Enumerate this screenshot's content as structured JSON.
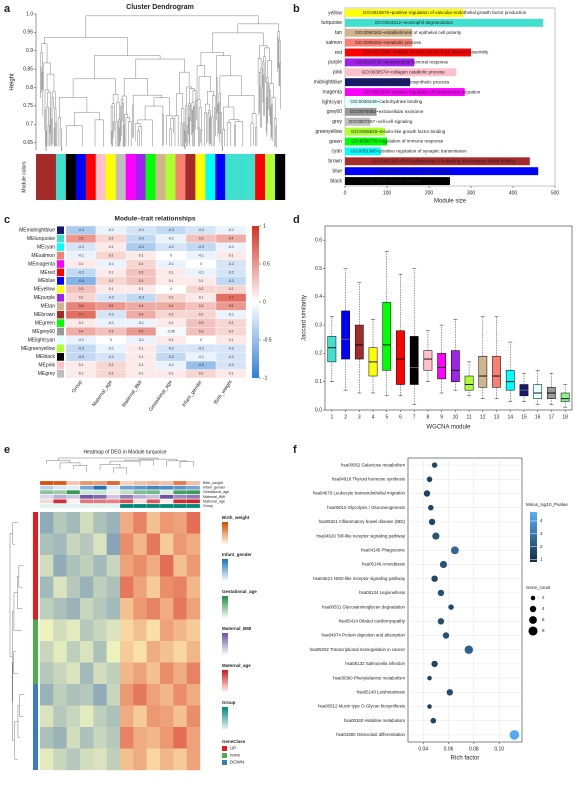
{
  "chart_data": [
    {
      "type": "dendrogram",
      "panel": "a",
      "title": "Cluster Dendrogram",
      "ylabel": "Height",
      "strip_label": "Module colors",
      "ylim": [
        0.63,
        1.0
      ],
      "yticks": [
        0.65,
        0.7,
        0.75,
        0.8,
        0.85,
        0.9,
        0.95,
        {
          "value": 1,
          "label": "1.0"
        }
      ],
      "strip_colors": [
        "#a52a2a",
        "#a52a2a",
        "#40e0d0",
        "#000000",
        "#0000ff",
        "#ff0000",
        "#ffc0cb",
        "#ffff00",
        "#bebebe",
        "#ff00ff",
        "#a020f0",
        "#00ff00",
        "#d2b48c",
        "#adff2f",
        "#fa8072",
        "#a52a2a",
        "#ffff00",
        "#00ffff",
        "#0000ff",
        "#40e0d0",
        "#40e0d0",
        "#40e0d0",
        "#ff0000",
        "#adff2f",
        "#000000"
      ]
    },
    {
      "type": "hbar",
      "panel": "b",
      "xlabel": "Module size",
      "categories": [
        "yellow",
        "turquoise",
        "tan",
        "salmon",
        "red",
        "purple",
        "pink",
        "midnightblue",
        "magenta",
        "lightcyan",
        "grey60",
        "grey",
        "greenyellow",
        "green",
        "cyan",
        "brown",
        "blue",
        "black"
      ],
      "values": [
        282,
        472,
        160,
        160,
        300,
        165,
        265,
        155,
        285,
        85,
        75,
        60,
        95,
        100,
        85,
        440,
        460,
        250
      ],
      "colors": [
        "#ffff00",
        "#40e0d0",
        "#d2b48c",
        "#fa8072",
        "#ff0000",
        "#a020f0",
        "#ffc0cb",
        "#191970",
        "#ff00ff",
        "#e0ffff",
        "#999999",
        "#bebebe",
        "#adff2f",
        "#00ff00",
        "#00ffff",
        "#a52a2a",
        "#0000ff",
        "#000000"
      ],
      "go_terms": [
        "GO:0010575~positive regulation of vascular endothelial growth factor production",
        "GO:0043312~neutrophil degranulation",
        "GO:0090162~establishment of epithelial cell polarity",
        "GO:0008152~metabolic process",
        "GO:0071688~striated muscle myosin thick filament assembly",
        "GO:0019730~antimicrobial humoral response",
        "GO:0030574~collagen catabolic process",
        "GO:0006750~glutathione biosynthetic process",
        "GO:0051549~positive regulation of keratinocyte migration",
        "GO:0030246~carbohydrate binding",
        "GO:0070062~extracellular exosome",
        "GO:0007267~cell-cell signaling",
        "GO:0005520~insulin-like growth factor binding",
        "GO:0050776~regulation of immune response",
        "GO:0051968~positive regulation of synaptic transmission",
        "GO:0001102~RNA polymerase II activating transcription factor binding",
        "GO:0050786~RAGE receptor binding",
        "GO:0003823~antigen binding"
      ],
      "xlim": [
        0,
        500
      ],
      "xticks": [
        0,
        100,
        200,
        300,
        400,
        500
      ]
    },
    {
      "type": "heatmap",
      "panel": "c",
      "title": "Module–trait relationships",
      "rows": [
        "MEmidnightblue",
        "MEturquoise",
        "MEcyan",
        "MEsalmon",
        "MEmagenta",
        "MEred",
        "MEblue",
        "MEyellow",
        "MEpurple",
        "MEtan",
        "MEbrown",
        "MEgreen",
        "MEgrey60",
        "MElightcyan",
        "MEgreenyellow",
        "MEblack",
        "MEpink",
        "MEgrey"
      ],
      "row_colors": [
        "#191970",
        "#40e0d0",
        "#00ffff",
        "#fa8072",
        "#ff00ff",
        "#ff0000",
        "#0000ff",
        "#ffff00",
        "#a020f0",
        "#d2b48c",
        "#a52a2a",
        "#00ff00",
        "#999999",
        "#e0ffff",
        "#adff2f",
        "#000000",
        "#ffc0cb",
        "#bebebe"
      ],
      "columns": [
        "Group",
        "Maternal_age",
        "Maternal_BMI",
        "Gestational_age",
        "Infant_gender",
        "Birth_weight"
      ],
      "values": [
        [
          -0.4,
          -0.1,
          -0.2,
          -0.3,
          -0.2,
          -0.1
        ],
        [
          0.5,
          0.2,
          -0.3,
          -0.1,
          0.3,
          0.4
        ],
        [
          -0.2,
          0.1,
          -0.4,
          -0.2,
          -0.3,
          -0.1
        ],
        [
          -0.1,
          0.2,
          0.1,
          0.0,
          -0.1,
          0.1
        ],
        [
          0.1,
          -0.1,
          0.2,
          -0.1,
          0.0,
          -0.2
        ],
        [
          -0.3,
          0.1,
          0.3,
          0.1,
          -0.1,
          -0.2
        ],
        [
          -0.6,
          0.2,
          0.3,
          0.1,
          0.1,
          -0.3
        ],
        [
          0.3,
          0.1,
          0.1,
          0.0,
          0.2,
          0.2
        ],
        [
          0.2,
          -0.2,
          -0.3,
          0.2,
          0.1,
          0.7
        ],
        [
          0.6,
          0.5,
          0.4,
          0.4,
          0.3,
          0.5
        ],
        [
          0.7,
          -0.2,
          0.4,
          0.2,
          0.2,
          -0.1
        ],
        [
          0.1,
          -0.1,
          -0.1,
          0.1,
          0.3,
          0.2
        ],
        [
          0.4,
          0.3,
          0.5,
          -0.05,
          0.3,
          0.2
        ],
        [
          -0.1,
          0.0,
          -0.1,
          0.1,
          0.0,
          0.1
        ],
        [
          -0.3,
          -0.1,
          0.1,
          -0.2,
          -0.2,
          -0.2
        ],
        [
          -0.3,
          -0.2,
          0.1,
          -0.3,
          -0.1,
          -0.2
        ],
        [
          0.1,
          0.2,
          0.1,
          -0.1,
          -0.5,
          -0.2
        ],
        [
          0.1,
          0.2,
          0.1,
          0.1,
          0.2,
          0.1
        ]
      ],
      "zlim": [
        -1,
        1
      ],
      "zticks": [
        1,
        0.5,
        0,
        -0.5,
        -1
      ]
    },
    {
      "type": "box",
      "panel": "d",
      "xlabel": "WGCNA module",
      "ylabel": "Jaccard similarity",
      "categories": [
        "1",
        "2",
        "3",
        "4",
        "5",
        "6",
        "7",
        "8",
        "9",
        "10",
        "11",
        "12",
        "13",
        "14",
        "15",
        "16",
        "17",
        "18"
      ],
      "colors": [
        "#40e0d0",
        "#0000ff",
        "#a52a2a",
        "#ffff00",
        "#00ff00",
        "#ff0000",
        "#000000",
        "#ffc0cb",
        "#ff00ff",
        "#a020f0",
        "#adff2f",
        "#d2b48c",
        "#fa8072",
        "#00ffff",
        "#191970",
        "#e0ffff",
        "#999999",
        "#90ee90"
      ],
      "min": [
        0.1,
        0.07,
        0.06,
        0.06,
        0.05,
        0.05,
        0.02,
        0.1,
        0.06,
        0.07,
        0.05,
        0.04,
        0.04,
        0.03,
        0.03,
        0.02,
        0.02,
        0.01
      ],
      "q1": [
        0.17,
        0.18,
        0.18,
        0.12,
        0.14,
        0.09,
        0.09,
        0.14,
        0.11,
        0.1,
        0.07,
        0.08,
        0.08,
        0.07,
        0.05,
        0.04,
        0.04,
        0.03
      ],
      "median": [
        0.22,
        0.25,
        0.23,
        0.17,
        0.23,
        0.18,
        0.15,
        0.18,
        0.15,
        0.14,
        0.09,
        0.12,
        0.12,
        0.1,
        0.07,
        0.06,
        0.06,
        0.04
      ],
      "q3": [
        0.26,
        0.35,
        0.3,
        0.22,
        0.38,
        0.28,
        0.26,
        0.21,
        0.2,
        0.21,
        0.12,
        0.19,
        0.19,
        0.14,
        0.09,
        0.09,
        0.08,
        0.06
      ],
      "max": [
        0.33,
        0.5,
        0.45,
        0.32,
        0.56,
        0.48,
        0.5,
        0.28,
        0.3,
        0.32,
        0.17,
        0.33,
        0.33,
        0.24,
        0.13,
        0.14,
        0.13,
        0.09
      ],
      "ylim": [
        0,
        0.65
      ],
      "yticks": [
        {
          "value": 0,
          "label": "0.0"
        },
        0.1,
        0.2,
        0.3,
        0.4,
        0.5,
        0.6
      ]
    },
    {
      "type": "clustered_heatmap",
      "panel": "e",
      "title": "Heatmap of DEG in Module turquoise",
      "annotations": [
        "Birth_weight",
        "Infant_gender",
        "Gestational_age",
        "Maternal_BMI",
        "Maternal_age",
        "Group"
      ],
      "gene_class_label": "GeneClass",
      "gene_classes": [
        "UP",
        "none",
        "DOWN"
      ],
      "values": [
        [
          -1.2,
          -0.8,
          -1.0,
          -0.5,
          -0.9,
          -1.1,
          0.8,
          1.2,
          0.6,
          1.0,
          0.9,
          1.4
        ],
        [
          -0.9,
          -1.0,
          -0.6,
          -0.8,
          -0.4,
          -1.3,
          1.1,
          0.7,
          1.3,
          0.5,
          1.0,
          0.8
        ],
        [
          -0.5,
          -1.2,
          -0.9,
          -0.7,
          -1.0,
          -0.6,
          0.9,
          1.1,
          0.8,
          1.4,
          0.6,
          1.0
        ],
        [
          -1.0,
          -0.4,
          -0.8,
          -1.1,
          -0.7,
          -0.9,
          1.3,
          0.9,
          0.5,
          1.1,
          1.2,
          0.7
        ],
        [
          -0.7,
          -0.9,
          -1.1,
          -0.6,
          -0.8,
          -1.0,
          0.6,
          1.0,
          1.2,
          0.8,
          1.3,
          0.9
        ],
        [
          -0.2,
          -0.5,
          -0.3,
          -0.8,
          -0.6,
          -0.4,
          0.4,
          0.6,
          0.3,
          0.9,
          0.7,
          0.5
        ],
        [
          -0.6,
          -0.3,
          -0.7,
          -0.4,
          -0.9,
          -0.2,
          0.5,
          0.3,
          0.8,
          0.6,
          0.4,
          0.7
        ],
        [
          -0.8,
          -0.6,
          -0.4,
          -1.0,
          -0.5,
          -0.7,
          0.7,
          0.9,
          0.6,
          1.1,
          0.8,
          1.2
        ],
        [
          -1.1,
          -0.7,
          -0.9,
          -0.8,
          -1.2,
          -0.6,
          1.0,
          1.3,
          0.9,
          0.7,
          1.1,
          0.8
        ],
        [
          -0.4,
          -0.8,
          -0.6,
          -0.3,
          -0.7,
          -0.9,
          0.8,
          0.5,
          1.0,
          0.9,
          0.6,
          1.1
        ],
        [
          -0.9,
          -1.1,
          -0.5,
          -0.9,
          -0.6,
          -0.8,
          1.2,
          0.8,
          0.7,
          1.0,
          1.4,
          0.9
        ],
        [
          -0.3,
          -0.6,
          -0.8,
          -0.5,
          -0.4,
          -0.7,
          0.6,
          0.8,
          0.4,
          0.7,
          0.5,
          0.9
        ]
      ],
      "zlim": [
        -2,
        2
      ]
    },
    {
      "type": "dot",
      "panel": "f",
      "xlabel": "Rich factor",
      "categories": [
        "hsa00052 Galactose metabolism",
        "hsa04918 Thyroid hormone synthesis",
        "hsa04670 Leukocyte transendothelial migration",
        "hsa00010 Glycolysis / Gluconeogenesis",
        "hsa05321 Inflammatory bowel disease (IBD)",
        "hsa04620 Toll-like receptor signaling pathway",
        "hsa04145 Phagosome",
        "hsa05146 Amoebiasis",
        "hsa04621 NOD-like receptor signaling pathway",
        "hsa05134 Legionellosis",
        "hsa00531 Glycosaminoglycan degradation",
        "hsa05414 Dilated cardiomyopathy",
        "hsa04974 Protein digestion and absorption",
        "hsa05202 Transcriptional misregulation in cancer",
        "hsa05132 Salmonella infection",
        "hsa00360 Phenylalanine metabolism",
        "hsa05140 Leishmaniasis",
        "hsa00512 Mucin type O-Glycan biosynthesis",
        "hsa00340 Histidine metabolism",
        "hsa04380 Osteoclast differentiation"
      ],
      "x": [
        0.049,
        0.045,
        0.043,
        0.046,
        0.047,
        0.05,
        0.065,
        0.056,
        0.049,
        0.054,
        0.062,
        0.054,
        0.058,
        0.076,
        0.049,
        0.045,
        0.061,
        0.045,
        0.048,
        0.112
      ],
      "color_values": [
        1.6,
        1.5,
        1.4,
        1.5,
        1.6,
        2.0,
        2.6,
        1.9,
        1.6,
        1.8,
        1.7,
        1.8,
        1.9,
        2.4,
        1.6,
        1.4,
        1.8,
        1.4,
        1.5,
        4.5
      ],
      "sizes": [
        3,
        3,
        4,
        3,
        4,
        5,
        6,
        5,
        4,
        4,
        3,
        4,
        4,
        7,
        4,
        2,
        4,
        2,
        3,
        9
      ],
      "xlim": [
        0.028,
        0.118
      ],
      "xticks": [
        0.04,
        0.06,
        0.08,
        {
          "value": 0.1,
          "label": "0.10"
        }
      ],
      "color_title": "Minus_log10_Pvalue",
      "clim": [
        0.8,
        4.7
      ],
      "cticks": [
        1,
        2,
        3,
        4
      ],
      "size_title": "Gene_count",
      "size_ticks": [
        2,
        4,
        6,
        8
      ]
    }
  ]
}
